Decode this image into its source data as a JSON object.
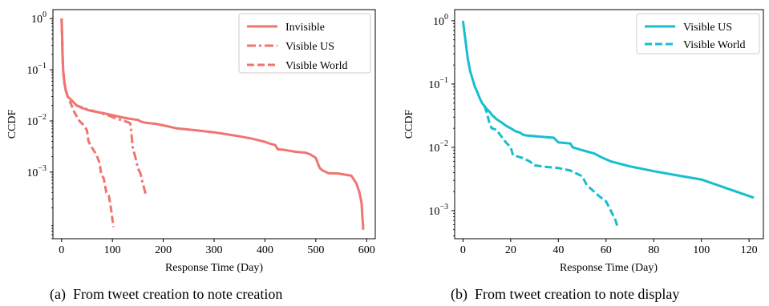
{
  "chart_data": [
    {
      "type": "line",
      "caption": "(a)  From tweet creation to note creation",
      "xlabel": "Response Time (Day)",
      "ylabel": "CCDF",
      "xlim": [
        -17,
        617
      ],
      "ylim": [
        5e-05,
        1.5
      ],
      "yscale": "log",
      "xticks": [
        0,
        100,
        200,
        300,
        400,
        500,
        600
      ],
      "xtick_labels": [
        "0",
        "100",
        "200",
        "300",
        "400",
        "500",
        "600"
      ],
      "yticks": [
        1,
        0.1,
        0.01,
        0.001
      ],
      "ytick_labels": [
        {
          "base": "10",
          "exp": "0"
        },
        {
          "base": "10",
          "exp": "−1"
        },
        {
          "base": "10",
          "exp": "−2"
        },
        {
          "base": "10",
          "exp": "−3"
        }
      ],
      "grid": false,
      "legend": "top-right",
      "series": [
        {
          "name": "Invisible",
          "style": "solid",
          "color": "#f07470",
          "points": [
            [
              0,
              1
            ],
            [
              1,
              0.5
            ],
            [
              2,
              0.2
            ],
            [
              3,
              0.1
            ],
            [
              5,
              0.065
            ],
            [
              8,
              0.04
            ],
            [
              12,
              0.03
            ],
            [
              20,
              0.025
            ],
            [
              30,
              0.02
            ],
            [
              40,
              0.018
            ],
            [
              55,
              0.016
            ],
            [
              70,
              0.015
            ],
            [
              85,
              0.014
            ],
            [
              100,
              0.013
            ],
            [
              115,
              0.012
            ],
            [
              135,
              0.011
            ],
            [
              150,
              0.0105
            ],
            [
              155,
              0.0098
            ],
            [
              165,
              0.0092
            ],
            [
              185,
              0.0088
            ],
            [
              200,
              0.0082
            ],
            [
              210,
              0.0078
            ],
            [
              225,
              0.0072
            ],
            [
              250,
              0.0068
            ],
            [
              275,
              0.0064
            ],
            [
              300,
              0.006
            ],
            [
              325,
              0.0055
            ],
            [
              350,
              0.005
            ],
            [
              375,
              0.0045
            ],
            [
              400,
              0.0039
            ],
            [
              410,
              0.0036
            ],
            [
              420,
              0.0034
            ],
            [
              425,
              0.0028
            ],
            [
              440,
              0.0027
            ],
            [
              460,
              0.0025
            ],
            [
              480,
              0.0024
            ],
            [
              490,
              0.0022
            ],
            [
              500,
              0.0019
            ],
            [
              505,
              0.0014
            ],
            [
              508,
              0.0012
            ],
            [
              512,
              0.0011
            ],
            [
              525,
              0.00095
            ],
            [
              545,
              0.00094
            ],
            [
              570,
              0.00085
            ],
            [
              580,
              0.0006
            ],
            [
              586,
              0.0004
            ],
            [
              590,
              0.00025
            ],
            [
              592,
              0.00012
            ],
            [
              593,
              9e-05
            ],
            [
              593,
              7.5e-05
            ]
          ]
        },
        {
          "name": "Visible US",
          "style": "dashdot",
          "color": "#f07470",
          "points": [
            [
              0,
              1
            ],
            [
              1,
              0.5
            ],
            [
              2,
              0.2
            ],
            [
              3,
              0.1
            ],
            [
              5,
              0.065
            ],
            [
              8,
              0.04
            ],
            [
              12,
              0.03
            ],
            [
              20,
              0.025
            ],
            [
              30,
              0.02
            ],
            [
              50,
              0.017
            ],
            [
              70,
              0.015
            ],
            [
              90,
              0.013
            ],
            [
              110,
              0.011
            ],
            [
              130,
              0.0095
            ],
            [
              135,
              0.009
            ],
            [
              137,
              0.0065
            ],
            [
              140,
              0.003
            ],
            [
              145,
              0.002
            ],
            [
              150,
              0.0012
            ],
            [
              155,
              0.00095
            ],
            [
              158,
              0.0007
            ],
            [
              162,
              0.0005
            ],
            [
              165,
              0.00038
            ]
          ]
        },
        {
          "name": "Visible World",
          "style": "dashed",
          "color": "#f07470",
          "points": [
            [
              0,
              1
            ],
            [
              1,
              0.5
            ],
            [
              2,
              0.2
            ],
            [
              3,
              0.1
            ],
            [
              5,
              0.06
            ],
            [
              8,
              0.04
            ],
            [
              12,
              0.03
            ],
            [
              18,
              0.022
            ],
            [
              25,
              0.015
            ],
            [
              35,
              0.01
            ],
            [
              45,
              0.008
            ],
            [
              50,
              0.0065
            ],
            [
              53,
              0.004
            ],
            [
              58,
              0.0032
            ],
            [
              65,
              0.0025
            ],
            [
              70,
              0.002
            ],
            [
              75,
              0.0015
            ],
            [
              78,
              0.0009
            ],
            [
              80,
              0.00085
            ],
            [
              83,
              0.00075
            ],
            [
              88,
              0.0004
            ],
            [
              93,
              0.00035
            ],
            [
              97,
              0.0002
            ],
            [
              100,
              0.00012
            ],
            [
              102,
              8.5e-05
            ]
          ]
        }
      ]
    },
    {
      "type": "line",
      "caption": "(b)  From tweet creation to note display",
      "xlabel": "Response Time (Day)",
      "ylabel": "CCDF",
      "xlim": [
        -3.5,
        126
      ],
      "ylim": [
        0.00036,
        1.5
      ],
      "yscale": "log",
      "xticks": [
        0,
        20,
        40,
        60,
        80,
        100,
        120
      ],
      "xtick_labels": [
        "0",
        "20",
        "40",
        "60",
        "80",
        "100",
        "120"
      ],
      "yticks": [
        1,
        0.1,
        0.01,
        0.001
      ],
      "ytick_labels": [
        {
          "base": "10",
          "exp": "0"
        },
        {
          "base": "10",
          "exp": "−1"
        },
        {
          "base": "10",
          "exp": "−2"
        },
        {
          "base": "10",
          "exp": "−3"
        }
      ],
      "grid": false,
      "legend": "top-right",
      "series": [
        {
          "name": "Visible US",
          "style": "solid",
          "color": "#17becf",
          "points": [
            [
              0,
              1
            ],
            [
              0.5,
              0.7
            ],
            [
              1,
              0.5
            ],
            [
              1.5,
              0.35
            ],
            [
              2,
              0.25
            ],
            [
              3,
              0.16
            ],
            [
              4,
              0.12
            ],
            [
              5,
              0.09
            ],
            [
              6,
              0.075
            ],
            [
              7,
              0.06
            ],
            [
              8,
              0.05
            ],
            [
              9,
              0.045
            ],
            [
              10,
              0.04
            ],
            [
              11,
              0.037
            ],
            [
              12,
              0.033
            ],
            [
              14,
              0.028
            ],
            [
              16,
              0.025
            ],
            [
              18,
              0.022
            ],
            [
              20,
              0.02
            ],
            [
              22,
              0.018
            ],
            [
              24,
              0.017
            ],
            [
              25,
              0.016
            ],
            [
              26,
              0.0155
            ],
            [
              30,
              0.015
            ],
            [
              35,
              0.0145
            ],
            [
              38,
              0.0142
            ],
            [
              40,
              0.012
            ],
            [
              45,
              0.0115
            ],
            [
              46,
              0.01
            ],
            [
              50,
              0.009
            ],
            [
              55,
              0.008
            ],
            [
              58,
              0.007
            ],
            [
              62,
              0.006
            ],
            [
              70,
              0.005
            ],
            [
              80,
              0.0042
            ],
            [
              90,
              0.0036
            ],
            [
              100,
              0.0031
            ],
            [
              110,
              0.0023
            ],
            [
              122,
              0.0016
            ]
          ]
        },
        {
          "name": "Visible World",
          "style": "dashed",
          "color": "#17becf",
          "points": [
            [
              9,
              0.045
            ],
            [
              9.5,
              0.04
            ],
            [
              10,
              0.035
            ],
            [
              11,
              0.025
            ],
            [
              12,
              0.02
            ],
            [
              14,
              0.019
            ],
            [
              16,
              0.015
            ],
            [
              18,
              0.012
            ],
            [
              20,
              0.01
            ],
            [
              21,
              0.0075
            ],
            [
              25,
              0.0068
            ],
            [
              28,
              0.006
            ],
            [
              30,
              0.0052
            ],
            [
              35,
              0.0049
            ],
            [
              40,
              0.0047
            ],
            [
              45,
              0.0043
            ],
            [
              50,
              0.0035
            ],
            [
              52,
              0.0025
            ],
            [
              55,
              0.002
            ],
            [
              57,
              0.0017
            ],
            [
              60,
              0.0014
            ],
            [
              62,
              0.001
            ],
            [
              64,
              0.0007
            ],
            [
              65,
              0.00052
            ]
          ]
        }
      ]
    }
  ]
}
